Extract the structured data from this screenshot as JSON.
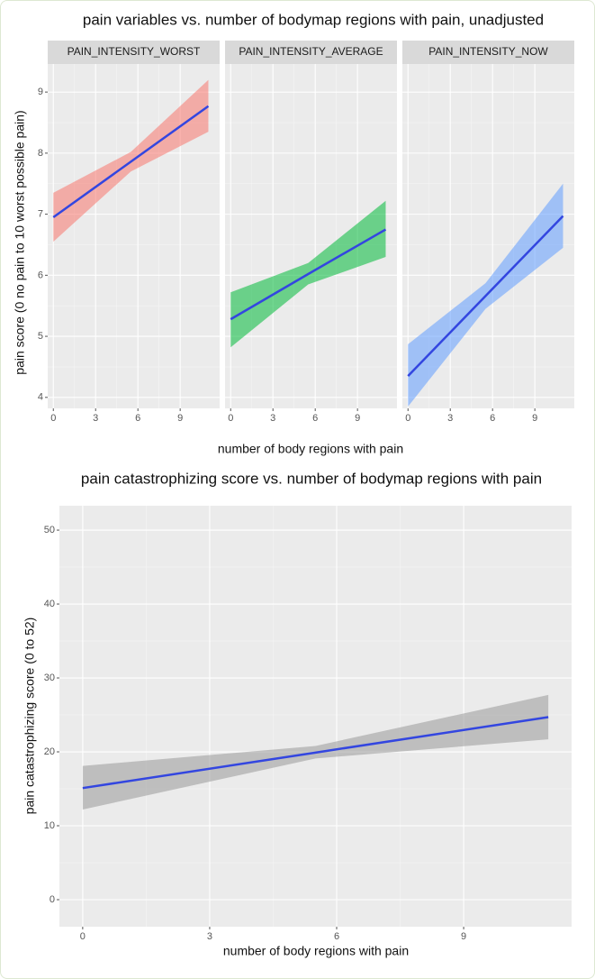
{
  "chart_data": [
    {
      "type": "line",
      "title": "pain variables vs. number of bodymap regions with pain, unadjusted",
      "xlabel": "number of body regions with pain",
      "ylabel": "pain score (0 no pain to 10 worst possible pain)",
      "xlim": [
        -0.4,
        11.8
      ],
      "xticks": [
        0,
        3,
        6,
        9
      ],
      "ylim": [
        3.82,
        9.46
      ],
      "yticks": [
        4,
        5,
        6,
        7,
        8,
        9
      ],
      "grid": true,
      "line_color": "#3346e0",
      "panels": [
        {
          "name": "PAIN_INTENSITY_WORST",
          "color": "#f8766d",
          "x": [
            0,
            5.5,
            11
          ],
          "values": [
            6.95,
            7.86,
            8.77
          ],
          "lower": [
            6.55,
            7.7,
            8.35
          ],
          "upper": [
            7.35,
            8.02,
            9.2
          ]
        },
        {
          "name": "PAIN_INTENSITY_AVERAGE",
          "color": "#00ba38",
          "x": [
            0,
            5.5,
            11
          ],
          "values": [
            5.28,
            6.02,
            6.75
          ],
          "lower": [
            4.82,
            5.85,
            6.3
          ],
          "upper": [
            5.72,
            6.2,
            7.22
          ]
        },
        {
          "name": "PAIN_INTENSITY_NOW",
          "color": "#619cff",
          "x": [
            0,
            5.5,
            11
          ],
          "values": [
            4.35,
            5.66,
            6.97
          ],
          "lower": [
            3.85,
            5.45,
            6.45
          ],
          "upper": [
            4.87,
            5.87,
            7.5
          ]
        }
      ]
    },
    {
      "type": "line",
      "title": "pain catastrophizing score vs. number of bodymap regions with pain",
      "xlabel": "number of body regions with pain",
      "ylabel": "pain catastrophizing score (0 to 52)",
      "xlim": [
        -0.55,
        11.55
      ],
      "xticks": [
        0,
        3,
        6,
        9
      ],
      "ylim": [
        -3.66,
        53.3
      ],
      "yticks": [
        0,
        10,
        20,
        30,
        40,
        50
      ],
      "grid": true,
      "line_color": "#3346e0",
      "series": [
        {
          "color": "#999999",
          "x": [
            0,
            5.5,
            11
          ],
          "values": [
            15.1,
            19.9,
            24.7
          ],
          "lower": [
            12.2,
            19.1,
            21.7
          ],
          "upper": [
            18.1,
            20.8,
            27.7
          ]
        }
      ]
    }
  ]
}
